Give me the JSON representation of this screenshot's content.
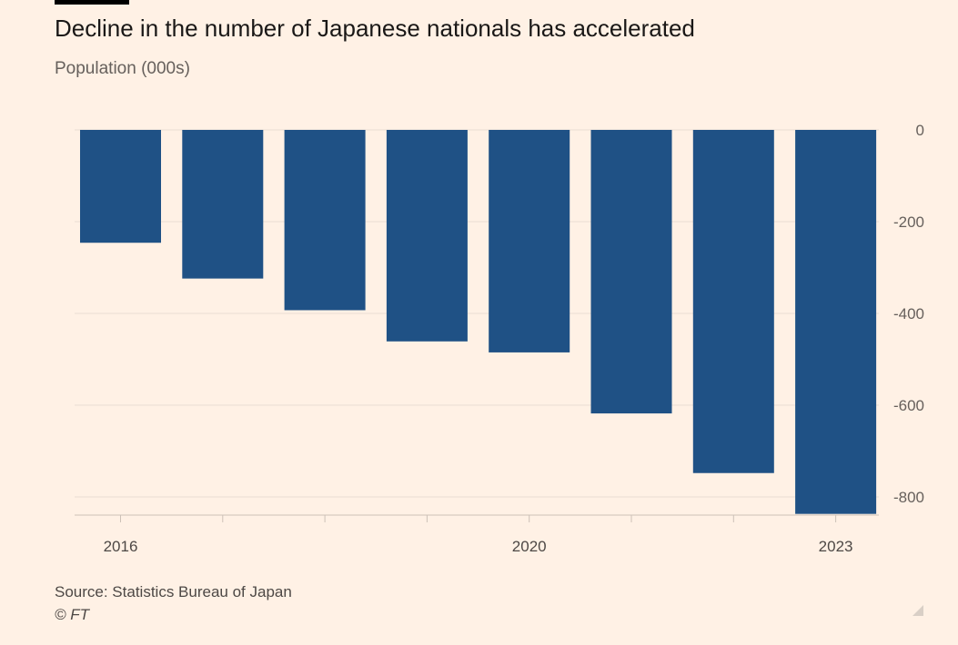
{
  "title": "Decline in the number of Japanese nationals has accelerated",
  "subtitle": "Population (000s)",
  "source": "Source: Statistics Bureau of Japan",
  "copyright": "© FT",
  "colors": {
    "bar": "#1f5185",
    "background": "#fff1e5",
    "grid": "#e9ddd2"
  },
  "chart_data": {
    "type": "bar",
    "title": "Decline in the number of Japanese nationals has accelerated",
    "ylabel": "Population (000s)",
    "xlabel": "",
    "categories": [
      "2016",
      "2017",
      "2018",
      "2019",
      "2020",
      "2021",
      "2022",
      "2023"
    ],
    "values": [
      -246,
      -324,
      -393,
      -461,
      -485,
      -618,
      -748,
      -837
    ],
    "ylim": [
      -840,
      0
    ],
    "yticks": [
      0,
      -200,
      -400,
      -600,
      -800
    ],
    "ytick_labels": [
      "0",
      "-200",
      "-400",
      "-600",
      "-800"
    ],
    "xtick_labels": {
      "2016": "2016",
      "2020": "2020",
      "2023": "2023"
    },
    "grid": true,
    "y_axis_position": "right"
  }
}
